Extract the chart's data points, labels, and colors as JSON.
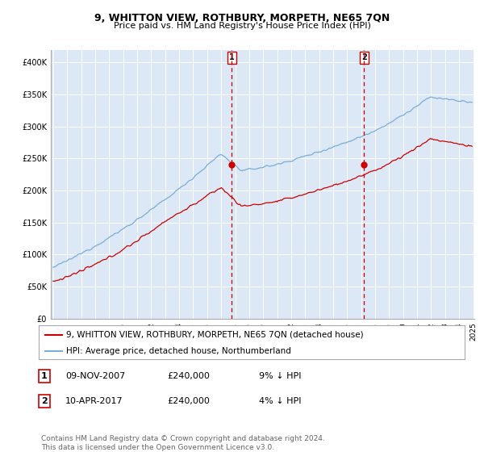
{
  "title": "9, WHITTON VIEW, ROTHBURY, MORPETH, NE65 7QN",
  "subtitle": "Price paid vs. HM Land Registry's House Price Index (HPI)",
  "ylabel_ticks": [
    "£0",
    "£50K",
    "£100K",
    "£150K",
    "£200K",
    "£250K",
    "£300K",
    "£350K",
    "£400K"
  ],
  "ytick_vals": [
    0,
    50000,
    100000,
    150000,
    200000,
    250000,
    300000,
    350000,
    400000
  ],
  "ylim": [
    0,
    420000
  ],
  "sale1_month_idx": 154,
  "sale1_price": 240000,
  "sale2_month_idx": 268,
  "sale2_price": 240000,
  "legend_line1": "9, WHITTON VIEW, ROTHBURY, MORPETH, NE65 7QN (detached house)",
  "legend_line2": "HPI: Average price, detached house, Northumberland",
  "footer": "Contains HM Land Registry data © Crown copyright and database right 2024.\nThis data is licensed under the Open Government Licence v3.0.",
  "hpi_color": "#7aaed6",
  "price_color": "#cc0000",
  "plot_bg": "#dce8f5",
  "grid_color": "#ffffff",
  "n_months": 362,
  "start_year": 1995,
  "n_years": 31,
  "title_fontsize": 9,
  "subtitle_fontsize": 8
}
